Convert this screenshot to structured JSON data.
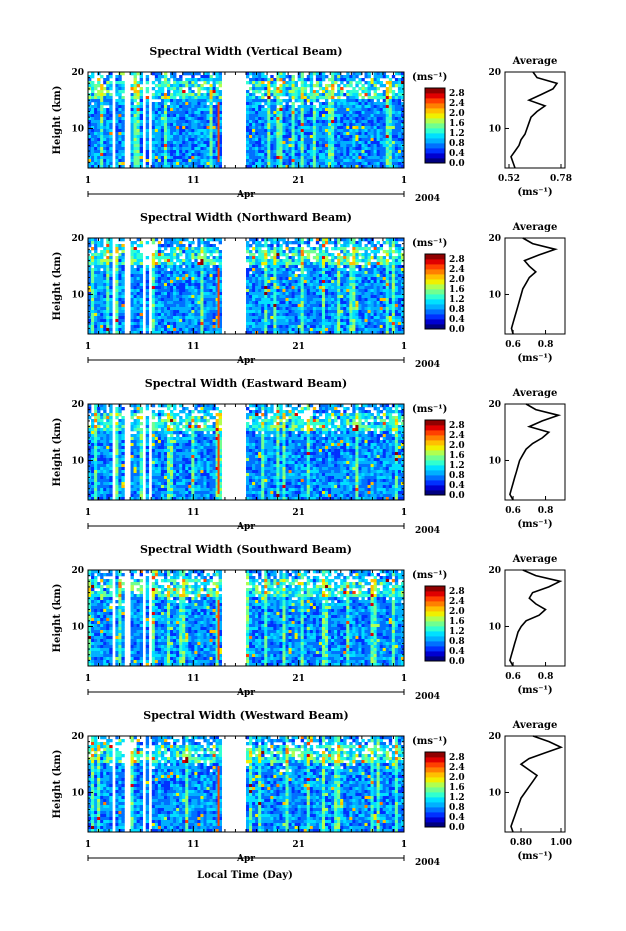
{
  "colors": {
    "colormap": [
      "#000080",
      "#0000d0",
      "#0030ff",
      "#0070ff",
      "#00b0ff",
      "#00e0ff",
      "#30ffd0",
      "#70ff90",
      "#b0ff50",
      "#f0f000",
      "#ffc000",
      "#ff8000",
      "#ff4000",
      "#e00000",
      "#900000"
    ],
    "gap": "#ffffff",
    "missing": "#ffffff"
  },
  "footer": {
    "xlabel": "Local Time (Day)"
  },
  "chart_data": [
    {
      "type": "heatmap",
      "title": "Spectral Width (Vertical Beam)",
      "ylabel": "Height (km)",
      "ylim": [
        3,
        20
      ],
      "yticks": [
        "20",
        "10"
      ],
      "xlim": [
        1,
        31
      ],
      "xticks": [
        "1",
        "11",
        "21",
        "1"
      ],
      "month": "Apr",
      "year": "2004",
      "colorbar": {
        "unit": "(ms⁻¹)",
        "levels": [
          "2.8",
          "2.4",
          "2.0",
          "1.6",
          "1.2",
          "0.8",
          "0.4",
          "0.0"
        ],
        "range": [
          0,
          3.0
        ]
      },
      "gap_days": [
        [
          3.2,
          3.5
        ],
        [
          4.6,
          4.9
        ],
        [
          6.2,
          6.6
        ],
        [
          6.9,
          7.2
        ],
        [
          13.6,
          16.1
        ]
      ],
      "profile": {
        "title": "Average",
        "xticks": [
          "0.52",
          "0.78"
        ],
        "xlim": [
          0.5,
          0.8
        ],
        "unit": "(ms⁻¹)",
        "heights": [
          3,
          4,
          5,
          6,
          7,
          8,
          9,
          10,
          11,
          12,
          13,
          14,
          15,
          16,
          17,
          18,
          19,
          20
        ],
        "values": [
          0.55,
          0.54,
          0.53,
          0.55,
          0.57,
          0.58,
          0.6,
          0.61,
          0.62,
          0.63,
          0.66,
          0.7,
          0.62,
          0.68,
          0.74,
          0.76,
          0.66,
          0.64
        ]
      }
    },
    {
      "type": "heatmap",
      "title": "Spectral Width (Northward Beam)",
      "ylabel": "Height (km)",
      "ylim": [
        3,
        20
      ],
      "yticks": [
        "20",
        "10"
      ],
      "xlim": [
        1,
        31
      ],
      "xticks": [
        "1",
        "11",
        "21",
        "1"
      ],
      "month": "Apr",
      "year": "2004",
      "colorbar": {
        "unit": "(ms⁻¹)",
        "levels": [
          "2.8",
          "2.4",
          "2.0",
          "1.6",
          "1.2",
          "0.8",
          "0.4",
          "0.0"
        ],
        "range": [
          0,
          3.0
        ]
      },
      "gap_days": [
        [
          3.2,
          3.5
        ],
        [
          4.6,
          4.9
        ],
        [
          6.2,
          6.6
        ],
        [
          6.9,
          7.2
        ],
        [
          13.6,
          16.1
        ]
      ],
      "profile": {
        "title": "Average",
        "xticks": [
          "0.6",
          "0.8"
        ],
        "xlim": [
          0.55,
          0.92
        ],
        "unit": "(ms⁻¹)",
        "heights": [
          3,
          4,
          5,
          6,
          7,
          8,
          9,
          10,
          11,
          12,
          13,
          14,
          15,
          16,
          17,
          18,
          19,
          20
        ],
        "values": [
          0.6,
          0.59,
          0.6,
          0.61,
          0.62,
          0.63,
          0.64,
          0.65,
          0.66,
          0.68,
          0.7,
          0.74,
          0.7,
          0.67,
          0.76,
          0.86,
          0.72,
          0.66
        ]
      }
    },
    {
      "type": "heatmap",
      "title": "Spectral Width (Eastward Beam)",
      "ylabel": "Height (km)",
      "ylim": [
        3,
        20
      ],
      "yticks": [
        "20",
        "10"
      ],
      "xlim": [
        1,
        31
      ],
      "xticks": [
        "1",
        "11",
        "21",
        "1"
      ],
      "month": "Apr",
      "year": "2004",
      "colorbar": {
        "unit": "(ms⁻¹)",
        "levels": [
          "2.8",
          "2.4",
          "2.0",
          "1.6",
          "1.2",
          "0.8",
          "0.4",
          "0.0"
        ],
        "range": [
          0,
          3.0
        ]
      },
      "gap_days": [
        [
          3.2,
          3.5
        ],
        [
          4.6,
          4.9
        ],
        [
          6.2,
          6.6
        ],
        [
          6.9,
          7.2
        ],
        [
          13.6,
          16.1
        ]
      ],
      "profile": {
        "title": "Average",
        "xticks": [
          "0.6",
          "0.8"
        ],
        "xlim": [
          0.55,
          0.92
        ],
        "unit": "(ms⁻¹)",
        "heights": [
          3,
          4,
          5,
          6,
          7,
          8,
          9,
          10,
          11,
          12,
          13,
          14,
          15,
          16,
          17,
          18,
          19,
          20
        ],
        "values": [
          0.6,
          0.58,
          0.59,
          0.6,
          0.61,
          0.62,
          0.63,
          0.64,
          0.66,
          0.68,
          0.72,
          0.78,
          0.82,
          0.7,
          0.78,
          0.88,
          0.74,
          0.68
        ]
      }
    },
    {
      "type": "heatmap",
      "title": "Spectral Width (Southward Beam)",
      "ylabel": "Height (km)",
      "ylim": [
        3,
        20
      ],
      "yticks": [
        "20",
        "10"
      ],
      "xlim": [
        1,
        31
      ],
      "xticks": [
        "1",
        "11",
        "21",
        "1"
      ],
      "month": "Apr",
      "year": "2004",
      "colorbar": {
        "unit": "(ms⁻¹)",
        "levels": [
          "2.8",
          "2.4",
          "2.0",
          "1.6",
          "1.2",
          "0.8",
          "0.4",
          "0.0"
        ],
        "range": [
          0,
          3.0
        ]
      },
      "gap_days": [
        [
          3.2,
          3.5
        ],
        [
          4.6,
          4.9
        ],
        [
          6.2,
          6.6
        ],
        [
          6.9,
          7.2
        ],
        [
          13.6,
          16.1
        ]
      ],
      "profile": {
        "title": "Average",
        "xticks": [
          "0.6",
          "0.8"
        ],
        "xlim": [
          0.55,
          0.92
        ],
        "unit": "(ms⁻¹)",
        "heights": [
          3,
          4,
          5,
          6,
          7,
          8,
          9,
          10,
          11,
          12,
          13,
          14,
          15,
          16,
          17,
          18,
          19,
          20
        ],
        "values": [
          0.6,
          0.58,
          0.59,
          0.6,
          0.61,
          0.62,
          0.63,
          0.65,
          0.68,
          0.76,
          0.8,
          0.74,
          0.7,
          0.72,
          0.82,
          0.89,
          0.74,
          0.66
        ]
      }
    },
    {
      "type": "heatmap",
      "title": "Spectral Width (Westward Beam)",
      "ylabel": "Height (km)",
      "ylim": [
        3,
        20
      ],
      "yticks": [
        "20",
        "10"
      ],
      "xlim": [
        1,
        31
      ],
      "xticks": [
        "1",
        "11",
        "21",
        "1"
      ],
      "month": "Apr",
      "year": "2004",
      "colorbar": {
        "unit": "(ms⁻¹)",
        "levels": [
          "2.8",
          "2.4",
          "2.0",
          "1.6",
          "1.2",
          "0.8",
          "0.4",
          "0.0"
        ],
        "range": [
          0,
          3.0
        ]
      },
      "gap_days": [
        [
          3.2,
          3.5
        ],
        [
          4.6,
          4.9
        ],
        [
          6.2,
          6.6
        ],
        [
          6.9,
          7.2
        ],
        [
          13.6,
          16.1
        ]
      ],
      "profile": {
        "title": "Average",
        "xticks": [
          "0.80",
          "1.00"
        ],
        "xlim": [
          0.72,
          1.02
        ],
        "unit": "(ms⁻¹)",
        "heights": [
          3,
          4,
          5,
          6,
          7,
          8,
          9,
          10,
          11,
          12,
          13,
          14,
          15,
          16,
          17,
          18,
          19,
          20
        ],
        "values": [
          0.76,
          0.75,
          0.76,
          0.77,
          0.78,
          0.79,
          0.8,
          0.82,
          0.84,
          0.86,
          0.88,
          0.84,
          0.8,
          0.84,
          0.92,
          1.0,
          0.94,
          0.86
        ]
      }
    }
  ]
}
